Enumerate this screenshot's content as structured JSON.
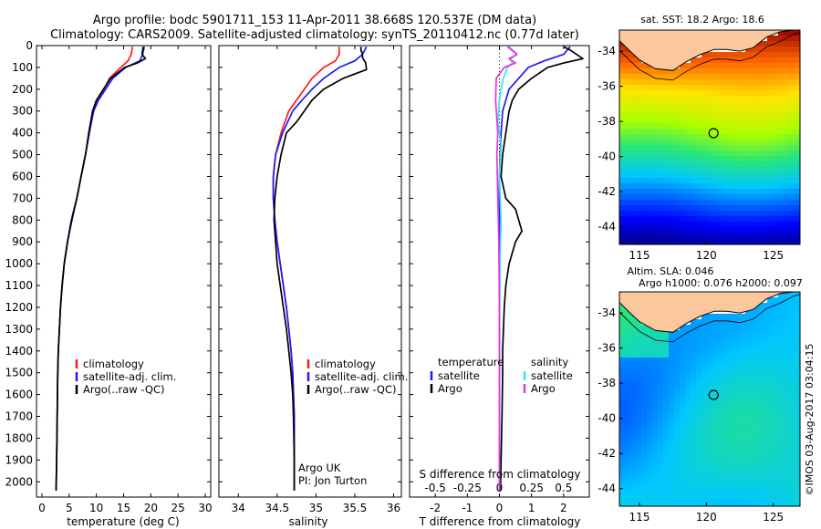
{
  "title_lines": [
    "Argo profile: bodc 5901711_153 11-Apr-2011 38.668S 120.537E (DM data)",
    "Climatology: CARS2009. Satellite-adjusted climatology: synTS_20110412.nc (0.77d later)"
  ],
  "colors": {
    "climatology": "#ff1a1a",
    "satellite": "#1a1aff",
    "argo": "#000000",
    "satellite_salinity": "#33e6ee",
    "argo_salinity": "#e633e6",
    "land": "#fbc79c"
  },
  "chart_data": [
    {
      "type": "line",
      "panel": "temperature",
      "xlabel": "temperature (deg C)",
      "ylabel": "",
      "xlim": [
        -1,
        31
      ],
      "ylim": [
        2070,
        0
      ],
      "y_reversed": true,
      "xticks": [
        0,
        5,
        10,
        15,
        20,
        25,
        30
      ],
      "yticks": [
        0,
        100,
        200,
        300,
        400,
        500,
        600,
        700,
        800,
        900,
        1000,
        1100,
        1200,
        1300,
        1400,
        1500,
        1600,
        1700,
        1800,
        1900,
        2000
      ],
      "legend": [
        "climatology",
        "satellite-adj. clim.",
        "Argo(..raw -QC)"
      ],
      "series": [
        {
          "name": "climatology",
          "color": "#ff1a1a",
          "x": [
            16.6,
            16.4,
            15.8,
            14.5,
            12.4,
            11.4,
            10.2,
            9.4,
            8.7,
            8.0,
            7.2,
            6.4,
            5.4,
            4.7,
            4.1,
            3.7,
            3.4,
            3.2,
            3.0,
            2.9,
            2.8,
            2.7,
            2.6
          ],
          "y": [
            5,
            40,
            70,
            100,
            150,
            200,
            250,
            300,
            400,
            500,
            600,
            700,
            800,
            900,
            1000,
            1100,
            1200,
            1300,
            1400,
            1500,
            1700,
            1900,
            2040
          ]
        },
        {
          "name": "satellite-adj. clim.",
          "color": "#1a1aff",
          "x": [
            18.8,
            18.5,
            18.0,
            15.4,
            13.0,
            11.7,
            10.4,
            9.5,
            8.7,
            8.0,
            7.2,
            6.4,
            5.4,
            4.7,
            4.1,
            3.7,
            3.4,
            3.2,
            3.0,
            2.9,
            2.8,
            2.7,
            2.6
          ],
          "y": [
            5,
            40,
            70,
            100,
            150,
            200,
            250,
            300,
            400,
            500,
            600,
            700,
            800,
            900,
            1000,
            1100,
            1200,
            1300,
            1400,
            1500,
            1700,
            1900,
            2040
          ]
        },
        {
          "name": "Argo(..raw -QC)",
          "color": "#000000",
          "x": [
            18.6,
            18.5,
            18.4,
            19.0,
            17.5,
            15.2,
            12.6,
            11.3,
            10.0,
            9.3,
            8.6,
            8.0,
            7.2,
            6.4,
            5.5,
            4.7,
            4.1,
            3.7,
            3.4,
            3.2,
            3.0,
            2.9,
            2.8,
            2.7,
            2.6
          ],
          "y": [
            5,
            20,
            40,
            60,
            80,
            100,
            150,
            200,
            250,
            300,
            400,
            500,
            600,
            700,
            800,
            900,
            1000,
            1100,
            1200,
            1300,
            1400,
            1500,
            1700,
            1900,
            2040
          ]
        }
      ]
    },
    {
      "type": "line",
      "panel": "salinity",
      "xlabel": "salinity",
      "ylabel": "",
      "xlim": [
        33.75,
        36.1
      ],
      "ylim": [
        2070,
        0
      ],
      "y_reversed": true,
      "xticks": [
        34,
        34.5,
        35,
        35.5,
        36
      ],
      "xticklabels": [
        "34",
        "34.5",
        "35",
        "35.5",
        "36"
      ],
      "legend": [
        "climatology",
        "satellite-adj. clim.",
        "Argo(..raw -QC)"
      ],
      "annotation": [
        "Argo UK",
        "PI: Jon Turton"
      ],
      "series": [
        {
          "name": "climatology",
          "color": "#ff1a1a",
          "x": [
            35.3,
            35.3,
            35.25,
            35.1,
            34.95,
            34.85,
            34.75,
            34.65,
            34.55,
            34.48,
            34.45,
            34.45,
            34.47,
            34.5,
            34.54,
            34.58,
            34.62,
            34.65,
            34.68,
            34.7,
            34.72,
            34.72,
            34.72
          ],
          "y": [
            5,
            40,
            70,
            100,
            150,
            200,
            250,
            300,
            400,
            500,
            600,
            700,
            800,
            900,
            1000,
            1100,
            1200,
            1300,
            1400,
            1500,
            1700,
            1900,
            2040
          ]
        },
        {
          "name": "satellite-adj. clim.",
          "color": "#1a1aff",
          "x": [
            35.65,
            35.6,
            35.5,
            35.3,
            35.1,
            34.95,
            34.82,
            34.7,
            34.57,
            34.48,
            34.45,
            34.45,
            34.47,
            34.5,
            34.54,
            34.58,
            34.62,
            34.65,
            34.68,
            34.7,
            34.72,
            34.72,
            34.72
          ],
          "y": [
            5,
            40,
            70,
            100,
            150,
            200,
            250,
            300,
            400,
            500,
            600,
            700,
            800,
            900,
            1000,
            1100,
            1200,
            1300,
            1400,
            1500,
            1700,
            1900,
            2040
          ]
        },
        {
          "name": "Argo(..raw -QC)",
          "color": "#000000",
          "x": [
            35.58,
            35.58,
            35.6,
            35.6,
            35.64,
            35.65,
            35.35,
            35.1,
            34.95,
            34.85,
            34.75,
            34.62,
            34.55,
            34.5,
            34.47,
            34.46,
            34.48,
            34.5,
            34.54,
            34.58,
            34.62,
            34.65,
            34.68,
            34.7,
            34.71,
            34.72,
            34.72
          ],
          "y": [
            5,
            20,
            40,
            55,
            80,
            110,
            150,
            200,
            250,
            300,
            350,
            400,
            500,
            600,
            700,
            800,
            900,
            1000,
            1100,
            1200,
            1300,
            1400,
            1500,
            1600,
            1700,
            1900,
            2040
          ]
        }
      ]
    },
    {
      "type": "line",
      "panel": "difference",
      "xlabel": "T difference from climatology",
      "xlabel_top": "S difference from climatology",
      "ylabel": "",
      "xlim": [
        -2.8,
        2.8
      ],
      "ylim": [
        2070,
        0
      ],
      "y_reversed": true,
      "xticks": [
        -2,
        -1,
        0,
        1,
        2
      ],
      "xticks_s": [
        -0.5,
        -0.25,
        0,
        0.25,
        0.5
      ],
      "legend_groups": [
        {
          "title": "temperature",
          "items": [
            "satellite",
            "Argo"
          ]
        },
        {
          "title": "salinity",
          "items": [
            "satellite",
            "Argo"
          ]
        }
      ],
      "series": [
        {
          "name": "temperature satellite",
          "color": "#1a1aff",
          "x": [
            2.2,
            2.0,
            1.4,
            0.9,
            0.6,
            0.3,
            0.2,
            0.1,
            0.05,
            0.02,
            0.0,
            0.0,
            0.0,
            0.0,
            0.0,
            0.0,
            0.0,
            0.0
          ],
          "y": [
            5,
            40,
            70,
            100,
            150,
            200,
            250,
            300,
            400,
            500,
            600,
            700,
            800,
            1000,
            1200,
            1500,
            1800,
            2040
          ]
        },
        {
          "name": "temperature Argo",
          "color": "#000000",
          "x": [
            2.0,
            2.2,
            2.6,
            2.0,
            1.5,
            1.0,
            0.6,
            0.4,
            0.3,
            0.2,
            0.1,
            0.05,
            0.2,
            0.5,
            0.7,
            0.5,
            0.3,
            0.2,
            0.15,
            0.1,
            0.1,
            0.08,
            0.05,
            0.03
          ],
          "y": [
            5,
            20,
            60,
            80,
            100,
            150,
            200,
            250,
            300,
            400,
            500,
            600,
            700,
            750,
            850,
            900,
            1000,
            1100,
            1200,
            1400,
            1500,
            1700,
            1900,
            2040
          ]
        },
        {
          "name": "salinity satellite",
          "color": "#33e6ee",
          "x": [
            0.3,
            0.55,
            0.35,
            0.4,
            0.25,
            0.12,
            0.05,
            0.0,
            -0.05,
            0.05,
            0.0,
            0.05,
            0.02,
            0.0,
            0.0,
            0.0
          ],
          "y": [
            5,
            40,
            60,
            80,
            100,
            150,
            200,
            250,
            350,
            450,
            600,
            800,
            1000,
            1300,
            1700,
            2040
          ]
        },
        {
          "name": "salinity Argo",
          "color": "#e633e6",
          "x": [
            0.25,
            0.55,
            0.3,
            0.5,
            0.15,
            -0.1,
            -0.12,
            -0.05,
            -0.08,
            -0.05,
            -0.02,
            0.0,
            0.0,
            0.0
          ],
          "y": [
            5,
            40,
            60,
            80,
            100,
            150,
            250,
            400,
            500,
            700,
            900,
            1200,
            1600,
            2040
          ]
        }
      ]
    },
    {
      "type": "heatmap",
      "panel": "sst_map",
      "title": "sat. SST: 18.2  Argo: 18.6",
      "xlim": [
        113.5,
        127
      ],
      "ylim": [
        -45,
        -32.8
      ],
      "xticks": [
        115,
        120,
        125
      ],
      "yticks": [
        -34,
        -36,
        -38,
        -40,
        -42,
        -44
      ],
      "profile_marker": {
        "lon": 120.537,
        "lat": -38.668
      }
    },
    {
      "type": "heatmap",
      "panel": "sla_map",
      "title_lines": [
        "Altim. SLA: 0.046",
        "Argo h1000: 0.076 h2000: 0.097"
      ],
      "xlim": [
        113.5,
        127
      ],
      "ylim": [
        -45,
        -32.8
      ],
      "xticks": [
        115,
        120,
        125
      ],
      "yticks": [
        -34,
        -36,
        -38,
        -40,
        -42,
        -44
      ],
      "profile_marker": {
        "lon": 120.537,
        "lat": -38.668
      }
    }
  ],
  "side_credit": "©IMOS 03-Aug-2017 03:04:15"
}
